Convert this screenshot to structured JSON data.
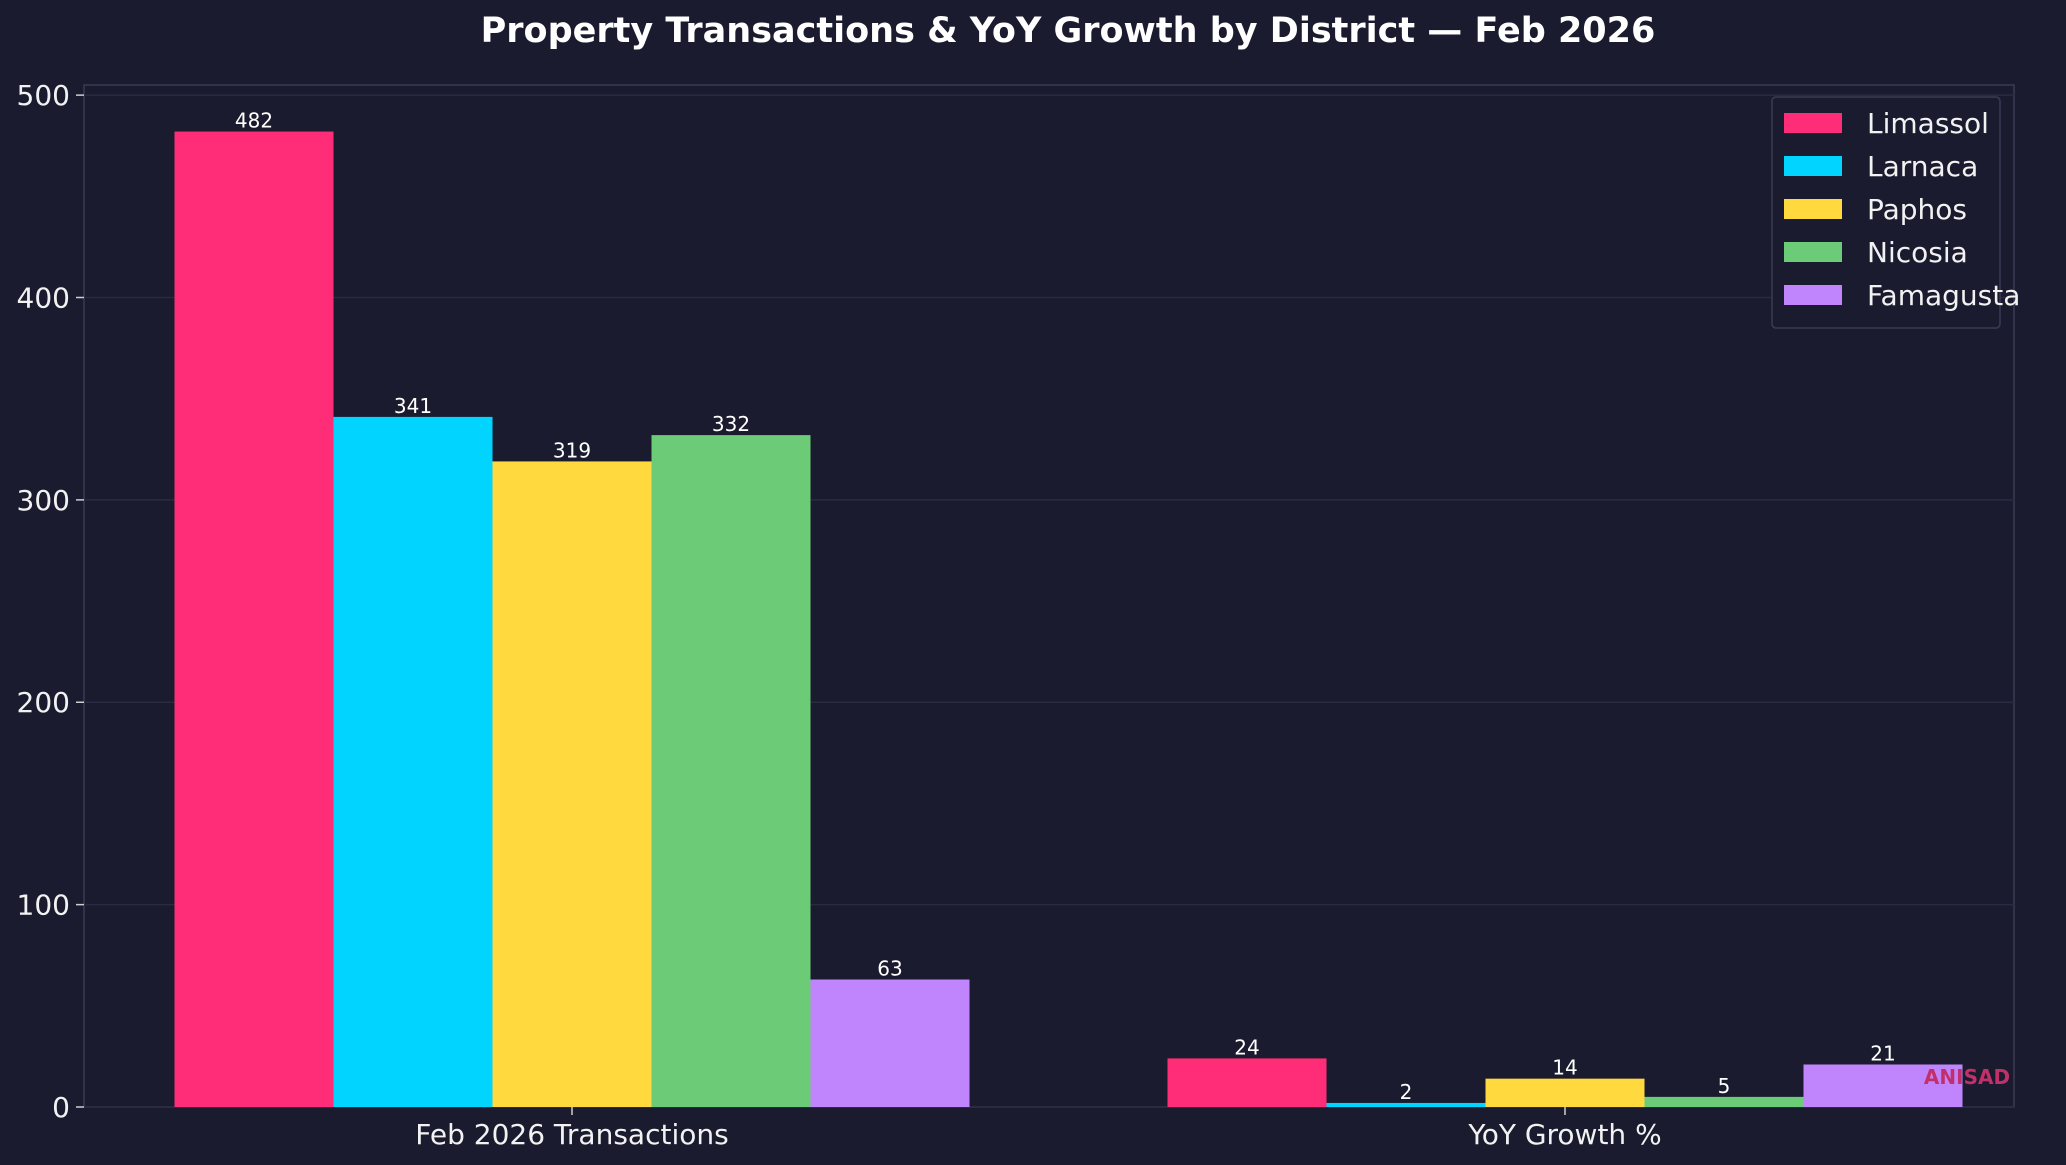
{
  "chart_data": {
    "type": "bar",
    "title": "Property Transactions & YoY Growth by District — Feb 2026",
    "xlabel": "",
    "ylabel": "",
    "categories": [
      "Feb 2026 Transactions",
      "YoY Growth %"
    ],
    "series": [
      {
        "name": "Limassol",
        "color": "#ff2d78",
        "values": [
          482,
          24
        ]
      },
      {
        "name": "Larnaca",
        "color": "#00d4ff",
        "values": [
          341,
          2
        ]
      },
      {
        "name": "Paphos",
        "color": "#ffd93d",
        "values": [
          319,
          14
        ]
      },
      {
        "name": "Nicosia",
        "color": "#6bcb77",
        "values": [
          332,
          5
        ]
      },
      {
        "name": "Famagusta",
        "color": "#c084fc",
        "values": [
          63,
          21
        ]
      }
    ],
    "ylim": [
      0,
      505
    ],
    "yticks": [
      0,
      100,
      200,
      300,
      400,
      500
    ],
    "grid": true,
    "legend_position": "top-right"
  },
  "watermark": "ANISAD",
  "colors": {
    "background": "#1a1b2e",
    "plot_background": "#1b1b2f",
    "grid": "#2a2b40",
    "axis": "#3a3b55",
    "text": "#f2f2f2"
  }
}
